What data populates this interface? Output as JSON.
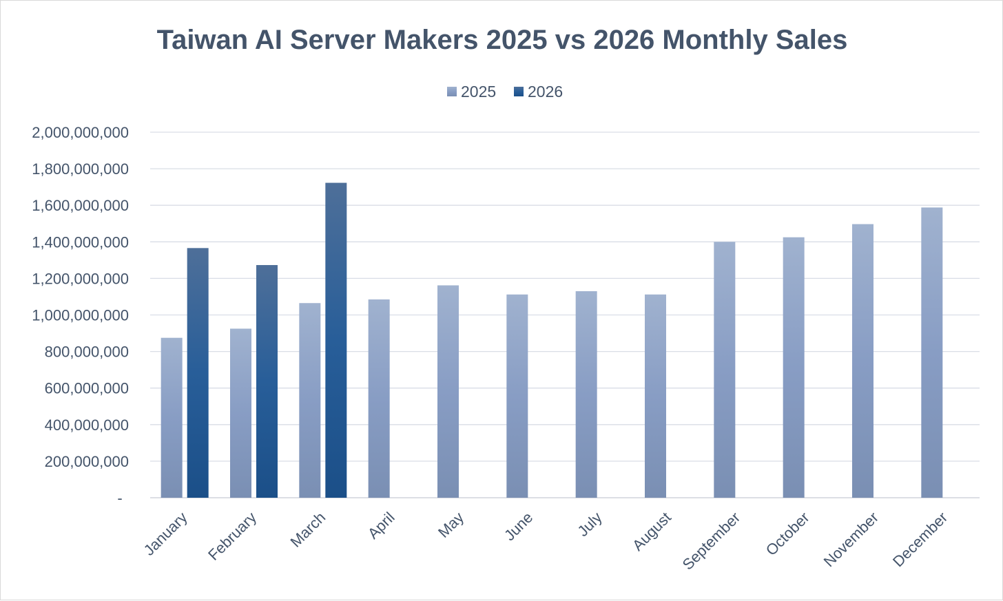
{
  "chart_data": {
    "type": "bar",
    "title": "Taiwan AI Server Makers 2025 vs 2026 Monthly Sales",
    "categories": [
      "January",
      "February",
      "March",
      "April",
      "May",
      "June",
      "July",
      "August",
      "September",
      "October",
      "November",
      "December"
    ],
    "series": [
      {
        "name": "2025",
        "color": "#8fa4c6",
        "values": [
          875000000,
          925000000,
          1065000000,
          1085000000,
          1162000000,
          1112000000,
          1130000000,
          1112000000,
          1400000000,
          1425000000,
          1497000000,
          1588000000
        ]
      },
      {
        "name": "2026",
        "color": "#2a5a93",
        "values": [
          1366000000,
          1273000000,
          1723000000,
          null,
          null,
          null,
          null,
          null,
          null,
          null,
          null,
          null
        ]
      }
    ],
    "yticks": [
      "-",
      "200,000,000",
      "400,000,000",
      "600,000,000",
      "800,000,000",
      "1,000,000,000",
      "1,200,000,000",
      "1,400,000,000",
      "1,600,000,000",
      "1,800,000,000",
      "2,000,000,000"
    ],
    "ylim": [
      0,
      2000000000
    ],
    "xlabel": "",
    "ylabel": "",
    "grid": true,
    "legend_position": "top"
  }
}
